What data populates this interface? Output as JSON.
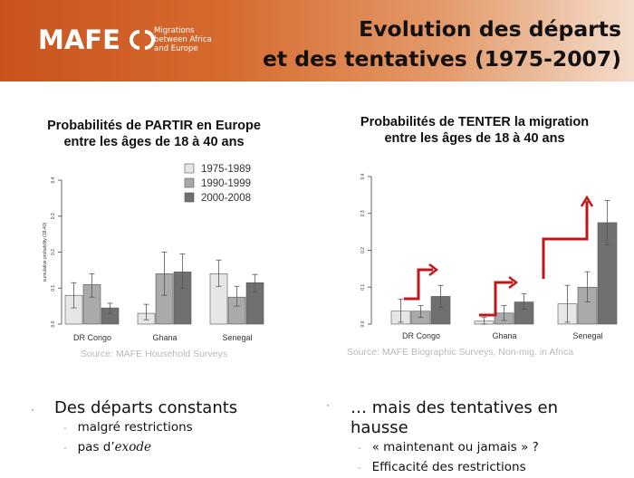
{
  "header": {
    "logo_text": "MAFE",
    "tagline": [
      "Migrations",
      "between Africa",
      "and Europe"
    ],
    "title_lines": [
      "Evolution des départs",
      "et des tentatives (1975-2007)"
    ]
  },
  "colors": {
    "banner": "#d56a2e",
    "bar1": "#e6e6e6",
    "bar2": "#aaaaaa",
    "bar3": "#707070",
    "arrow": "#c01818"
  },
  "chart_data": [
    {
      "type": "bar",
      "title": "Probabilités de PARTIR en Europe entre les âges de 18 à 40 ans",
      "title_lines": [
        "Probabilités de PARTIR en Europe",
        "entre les âges de 18 à 40 ans"
      ],
      "ylabel": "cumulative probability (18-40)",
      "ylim": [
        0,
        0.4
      ],
      "yticks": [
        "0.0",
        "0.1",
        "0.2",
        "0.3",
        "0.4"
      ],
      "categories": [
        "DR Congo",
        "Ghana",
        "Senegal"
      ],
      "series": [
        {
          "name": "1975-1989",
          "values": [
            0.08,
            0.03,
            0.14
          ],
          "err_low": [
            0.045,
            0.012,
            0.105
          ],
          "err_high": [
            0.115,
            0.055,
            0.178
          ]
        },
        {
          "name": "1990-1999",
          "values": [
            0.11,
            0.14,
            0.075
          ],
          "err_low": [
            0.075,
            0.08,
            0.05
          ],
          "err_high": [
            0.14,
            0.2,
            0.105
          ]
        },
        {
          "name": "2000-2008",
          "values": [
            0.045,
            0.145,
            0.115
          ],
          "err_low": [
            0.03,
            0.1,
            0.09
          ],
          "err_high": [
            0.058,
            0.195,
            0.138
          ]
        }
      ],
      "legend": "top-right",
      "source": "Source: MAFE Household Surveys"
    },
    {
      "type": "bar",
      "title": "Probabilités de TENTER la migration entre les âges de 18 à 40 ans",
      "title_lines": [
        "Probabilités de TENTER la migration",
        "entre les âges de 18 à 40 ans"
      ],
      "ylim": [
        0,
        0.4
      ],
      "yticks": [
        "0.0",
        "0.1",
        "0.2",
        "0.3",
        "0.4"
      ],
      "categories": [
        "DR Congo",
        "Ghana",
        "Senegal"
      ],
      "series": [
        {
          "name": "1975-1989",
          "values": [
            0.035,
            0.008,
            0.055
          ],
          "err_low": [
            0.005,
            0.0,
            0.005
          ],
          "err_high": [
            0.068,
            0.018,
            0.105
          ]
        },
        {
          "name": "1990-1999",
          "values": [
            0.035,
            0.03,
            0.1
          ],
          "err_low": [
            0.018,
            0.01,
            0.06
          ],
          "err_high": [
            0.05,
            0.05,
            0.142
          ]
        },
        {
          "name": "2000-2008",
          "values": [
            0.075,
            0.06,
            0.275
          ],
          "err_low": [
            0.045,
            0.04,
            0.215
          ],
          "err_high": [
            0.105,
            0.082,
            0.335
          ]
        }
      ],
      "source": "Source: MAFE Biographic Surveys, Non-mig. in Africa"
    }
  ],
  "bullets_left": {
    "main": "Des départs constants",
    "subs": [
      "malgré restrictions"
    ],
    "exode_prefix": "pas d’",
    "exode_word": "exode"
  },
  "bullets_right": {
    "main_line1": "… mais des tentatives en",
    "main_line2": "hausse",
    "subs": [
      "« maintenant ou jamais » ?",
      "Efficacité des restrictions"
    ]
  }
}
